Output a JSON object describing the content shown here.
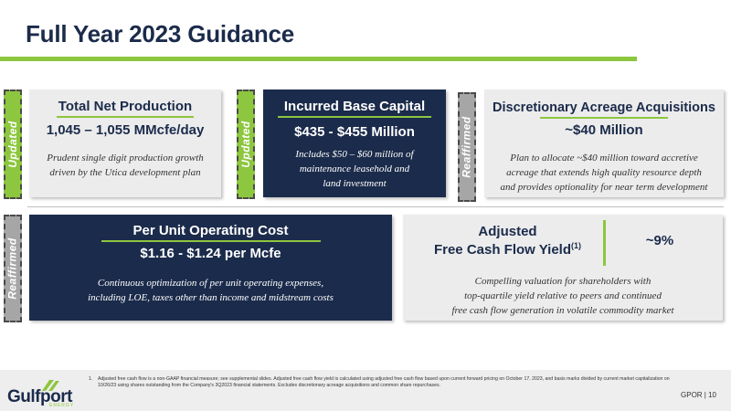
{
  "slide": {
    "title": "Full Year 2023 Guidance",
    "colors": {
      "navy": "#1b2b4b",
      "accent_green": "#8dc63f",
      "grey_tag": "#a6a6a6",
      "light_card": "#ececec"
    }
  },
  "tags": {
    "production": "Updated",
    "capital": "Updated",
    "acquisitions": "Reaffirmed",
    "opcost": "Reaffirmed"
  },
  "cards": {
    "production": {
      "heading": "Total Net Production",
      "value": "1,045 – 1,055 MMcfe/day",
      "desc_line1": "Prudent single digit production growth",
      "desc_line2": "driven by the Utica development plan"
    },
    "capital": {
      "heading": "Incurred Base Capital",
      "value": "$435 - $455 Million",
      "desc_line1": "Includes $50 – $60 million of",
      "desc_line2": "maintenance leasehold and",
      "desc_line3": "land investment"
    },
    "acquisitions": {
      "heading": "Discretionary Acreage Acquisitions",
      "value": "~$40 Million",
      "desc_line1": "Plan to allocate ~$40 million toward accretive",
      "desc_line2": "acreage that extends high quality resource depth",
      "desc_line3": "and provides optionality for near term development"
    },
    "opcost": {
      "heading": "Per Unit Operating Cost",
      "value": "$1.16 - $1.24 per Mcfe",
      "desc_line1": "Continuous optimization of per unit operating expenses,",
      "desc_line2": "including LOE, taxes other than income and midstream costs"
    },
    "fcf": {
      "heading_line1": "Adjusted",
      "heading_line2": "Free Cash Flow Yield",
      "heading_sup": "(1)",
      "value": "~9%",
      "desc_line1": "Compelling valuation for shareholders with",
      "desc_line2": "top-quartile yield relative to peers and continued",
      "desc_line3": "free cash flow generation in volatile commodity market"
    }
  },
  "footer": {
    "logo_text": "Gulfport",
    "logo_sub": "ENERGY",
    "footnote_num": "1.",
    "footnote_text": "Adjusted free cash flow is a non-GAAP financial measure; see supplemental slides. Adjusted free cash flow yield is calculated using adjusted free cash flow based upon current forward pricing on October 17, 2023, and basis marks divided by current market capitalization on 10/26/23 using shares outstanding from the Company's 3Q2023 financial statements. Excludes discretionary acreage acquisitions and common share repurchases.",
    "page_label": "GPOR | 10"
  }
}
